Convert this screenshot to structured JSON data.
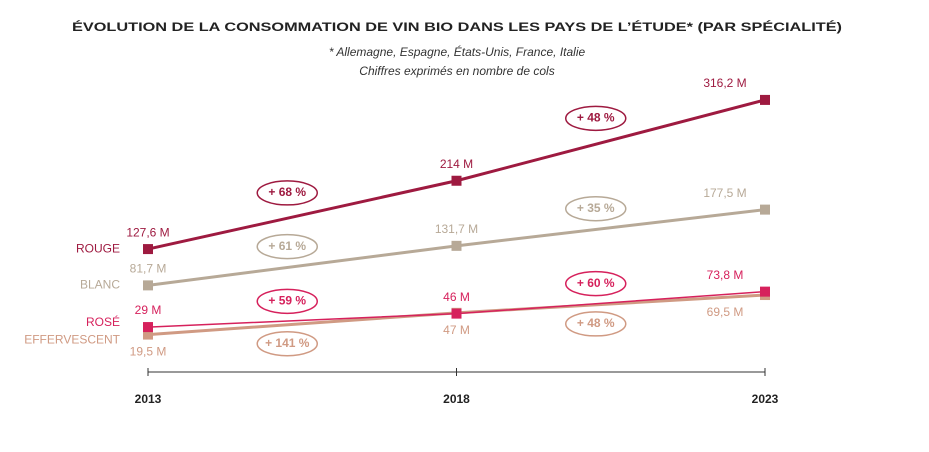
{
  "chart_data": {
    "type": "line",
    "title": "ÉVOLUTION DE LA CONSOMMATION DE VIN BIO DANS LES PAYS DE L’ÉTUDE* (PAR SPÉCIALITÉ)",
    "subtitle": [
      "* Allemagne, Espagne, États-Unis, France, Italie",
      "Chiffres exprimés en nombre de cols"
    ],
    "categories": [
      "2013",
      "2018",
      "2023"
    ],
    "ylim": [
      0,
      330
    ],
    "series": [
      {
        "name": "ROUGE",
        "color": "#9e1a40",
        "values": [
          127.6,
          214,
          316.2
        ],
        "value_labels": [
          "127,6 M",
          "214 M",
          "316,2 M"
        ],
        "growth_labels": [
          "+ 68 %",
          "+ 48 %"
        ]
      },
      {
        "name": "BLANC",
        "color": "#b7a997",
        "values": [
          81.7,
          131.7,
          177.5
        ],
        "value_labels": [
          "81,7 M",
          "131,7 M",
          "177,5 M"
        ],
        "growth_labels": [
          "+ 61 %",
          "+ 35 %"
        ]
      },
      {
        "name": "ROSÉ",
        "color": "#d6215c",
        "values": [
          29,
          46,
          73.8
        ],
        "value_labels": [
          "29 M",
          "46 M",
          "73,8 M"
        ],
        "growth_labels": [
          "+ 59 %",
          "+ 60 %"
        ]
      },
      {
        "name": "EFFERVESCENT",
        "color": "#d09a83",
        "values": [
          19.5,
          47,
          69.5
        ],
        "value_labels": [
          "19,5 M",
          "47 M",
          "69,5 M"
        ],
        "growth_labels": [
          "+ 141 %",
          "+ 48 %"
        ]
      }
    ]
  }
}
